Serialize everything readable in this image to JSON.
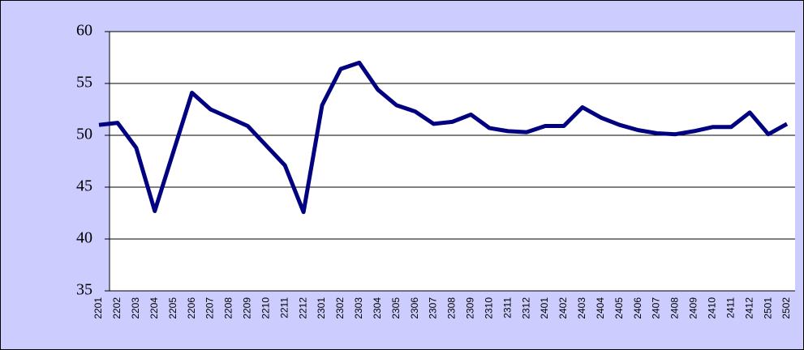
{
  "chart_data": {
    "type": "line",
    "categories": [
      "2201",
      "2202",
      "2203",
      "2204",
      "2205",
      "2206",
      "2207",
      "2208",
      "2209",
      "2210",
      "2211",
      "2212",
      "2301",
      "2302",
      "2303",
      "2304",
      "2305",
      "2306",
      "2307",
      "2308",
      "2309",
      "2310",
      "2311",
      "2312",
      "2401",
      "2402",
      "2403",
      "2404",
      "2405",
      "2406",
      "2407",
      "2408",
      "2409",
      "2410",
      "2411",
      "2412",
      "2501",
      "2502"
    ],
    "series": [
      {
        "color": "#000080",
        "values": [
          51.0,
          51.2,
          48.8,
          42.7,
          48.4,
          54.1,
          52.5,
          51.7,
          50.9,
          49.0,
          47.1,
          42.6,
          52.9,
          56.4,
          57.0,
          54.4,
          52.9,
          52.3,
          51.1,
          51.3,
          52.0,
          50.7,
          50.4,
          50.3,
          50.9,
          50.9,
          52.7,
          51.7,
          51.0,
          50.5,
          50.2,
          50.1,
          50.4,
          50.8,
          50.8,
          52.2,
          50.1,
          51.1
        ]
      }
    ],
    "ylim": [
      35,
      60
    ],
    "yticks": [
      35,
      40,
      45,
      50,
      55,
      60
    ],
    "grid": true
  }
}
